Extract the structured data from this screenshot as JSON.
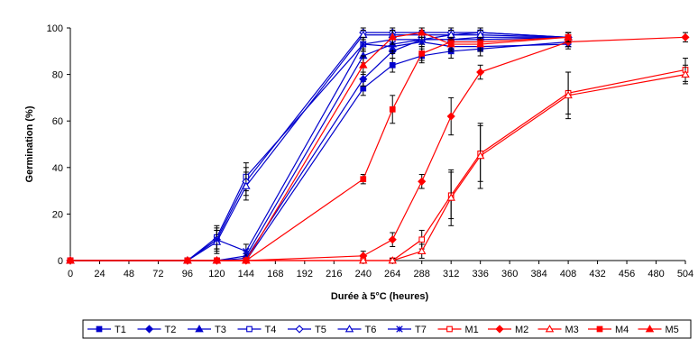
{
  "chart_data": {
    "type": "line",
    "xlabel": "Durée à 5°C (heures)",
    "ylabel": "Germination (%)",
    "xlim": [
      0,
      504
    ],
    "ylim": [
      0,
      100
    ],
    "x_ticks": [
      0,
      24,
      48,
      72,
      96,
      120,
      144,
      168,
      192,
      216,
      240,
      264,
      288,
      312,
      336,
      360,
      384,
      408,
      432,
      456,
      480,
      504
    ],
    "y_ticks": [
      0,
      20,
      40,
      60,
      80,
      100
    ],
    "grid": false,
    "legend_position": "bottom",
    "series": [
      {
        "name": "T1",
        "color": "#0000cc",
        "marker": "square-filled",
        "x": [
          0,
          96,
          120,
          144,
          240,
          264,
          288,
          312,
          336,
          408
        ],
        "y": [
          0,
          0,
          0,
          0,
          74,
          84,
          88,
          90,
          91,
          94
        ],
        "err": [
          0,
          0,
          0,
          0,
          3,
          3,
          3,
          3,
          3,
          2
        ]
      },
      {
        "name": "T2",
        "color": "#0000cc",
        "marker": "diamond-filled",
        "x": [
          0,
          96,
          120,
          144,
          240,
          264,
          288,
          312,
          336,
          408
        ],
        "y": [
          0,
          0,
          0,
          1,
          78,
          90,
          95,
          95,
          95,
          96
        ],
        "err": [
          0,
          0,
          0,
          1,
          3,
          3,
          2,
          2,
          2,
          2
        ]
      },
      {
        "name": "T3",
        "color": "#0000cc",
        "marker": "triangle-filled",
        "x": [
          0,
          96,
          120,
          144,
          240,
          264,
          288,
          312,
          336,
          408
        ],
        "y": [
          0,
          0,
          0,
          2,
          88,
          93,
          95,
          95,
          96,
          96
        ],
        "err": [
          0,
          0,
          0,
          1,
          3,
          3,
          2,
          2,
          2,
          2
        ]
      },
      {
        "name": "T4",
        "color": "#0000cc",
        "marker": "square-open",
        "x": [
          0,
          96,
          120,
          144,
          240,
          264,
          288,
          312,
          336,
          408
        ],
        "y": [
          0,
          0,
          10,
          36,
          93,
          95,
          95,
          97,
          98,
          96
        ],
        "err": [
          0,
          0,
          5,
          6,
          3,
          3,
          2,
          2,
          2,
          2
        ]
      },
      {
        "name": "T5",
        "color": "#0000cc",
        "marker": "diamond-open",
        "x": [
          0,
          96,
          120,
          144,
          240,
          264,
          288,
          312,
          336,
          408
        ],
        "y": [
          0,
          0,
          9,
          34,
          98,
          98,
          98,
          98,
          98,
          96
        ],
        "err": [
          0,
          0,
          5,
          6,
          2,
          2,
          2,
          2,
          2,
          2
        ]
      },
      {
        "name": "T6",
        "color": "#0000cc",
        "marker": "triangle-open",
        "x": [
          0,
          96,
          120,
          144,
          240,
          264,
          288,
          312,
          336,
          408
        ],
        "y": [
          0,
          0,
          8,
          32,
          97,
          97,
          97,
          97,
          97,
          96
        ],
        "err": [
          0,
          0,
          5,
          6,
          2,
          2,
          2,
          2,
          2,
          2
        ]
      },
      {
        "name": "T7",
        "color": "#0000cc",
        "marker": "star",
        "x": [
          0,
          96,
          120,
          144,
          240,
          264,
          288,
          312,
          336,
          408
        ],
        "y": [
          0,
          0,
          9,
          4,
          93,
          92,
          94,
          92,
          92,
          93
        ],
        "err": [
          0,
          0,
          4,
          3,
          3,
          3,
          2,
          2,
          2,
          2
        ]
      },
      {
        "name": "M1",
        "color": "#ff0000",
        "marker": "square-open",
        "x": [
          0,
          96,
          120,
          144,
          240,
          264,
          288,
          312,
          336,
          408,
          504
        ],
        "y": [
          0,
          0,
          0,
          0,
          0,
          0,
          9,
          28,
          46,
          72,
          82
        ],
        "err": [
          0,
          0,
          0,
          0,
          0,
          1,
          4,
          10,
          12,
          9,
          5
        ]
      },
      {
        "name": "M2",
        "color": "#ff0000",
        "marker": "diamond-filled",
        "x": [
          0,
          96,
          120,
          144,
          240,
          264,
          288,
          312,
          336,
          408,
          504
        ],
        "y": [
          0,
          0,
          0,
          0,
          2,
          9,
          34,
          62,
          81,
          94,
          96
        ],
        "err": [
          0,
          0,
          0,
          0,
          2,
          3,
          3,
          8,
          3,
          2,
          2
        ]
      },
      {
        "name": "M3",
        "color": "#ff0000",
        "marker": "triangle-open",
        "x": [
          0,
          96,
          120,
          144,
          240,
          264,
          288,
          312,
          336,
          408,
          504
        ],
        "y": [
          0,
          0,
          0,
          0,
          0,
          0,
          4,
          27,
          45,
          71,
          80
        ],
        "err": [
          0,
          0,
          0,
          0,
          0,
          1,
          3,
          12,
          14,
          10,
          4
        ]
      },
      {
        "name": "M4",
        "color": "#ff0000",
        "marker": "square-filled",
        "x": [
          0,
          96,
          120,
          144,
          240,
          264,
          288,
          312,
          336,
          408
        ],
        "y": [
          0,
          0,
          0,
          0,
          35,
          65,
          89,
          94,
          94,
          96
        ],
        "err": [
          0,
          0,
          0,
          0,
          2,
          6,
          3,
          2,
          2,
          2
        ]
      },
      {
        "name": "M5",
        "color": "#ff0000",
        "marker": "triangle-filled",
        "x": [
          0,
          96,
          120,
          144,
          240,
          264,
          288,
          312,
          336,
          408
        ],
        "y": [
          0,
          0,
          0,
          0,
          84,
          96,
          98,
          93,
          93,
          96
        ],
        "err": [
          0,
          0,
          0,
          0,
          4,
          3,
          2,
          2,
          2,
          2
        ]
      }
    ]
  }
}
